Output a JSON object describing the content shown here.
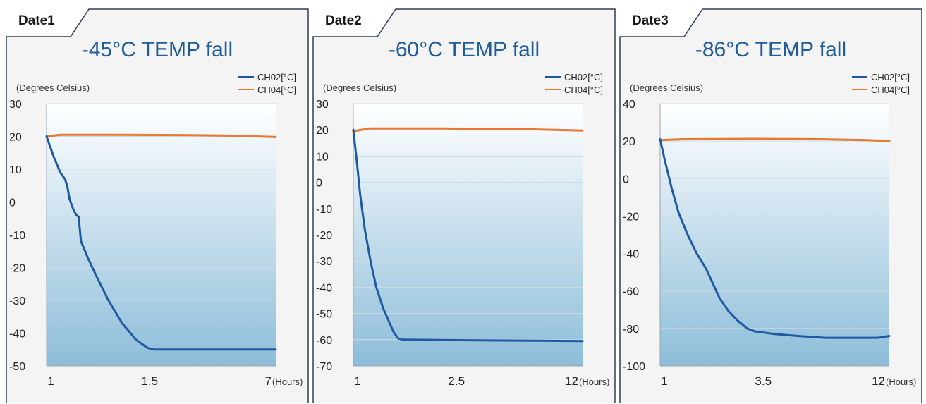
{
  "colors": {
    "ch02": "#1e5aa3",
    "ch04": "#e8792f",
    "title": "#1e5c9b",
    "frame": "#2f3f55",
    "panel_bg": "#f4f4f4"
  },
  "chart_data": [
    {
      "type": "line",
      "tab": "Date1",
      "title": "-45°C TEMP fall",
      "ylabel": "(Degrees Celsius)",
      "xunit": "(Hours)",
      "yticks": [
        30,
        20,
        10,
        0,
        -10,
        -20,
        -30,
        -40,
        -50
      ],
      "ylim": [
        -50,
        30
      ],
      "xticks": [
        "1",
        "1.5",
        "7"
      ],
      "series": [
        {
          "name": "CH02[°C]",
          "points": [
            [
              0,
              20
            ],
            [
              0.03,
              14
            ],
            [
              0.06,
              9
            ],
            [
              0.08,
              7
            ],
            [
              0.09,
              5
            ],
            [
              0.1,
              1
            ],
            [
              0.115,
              -2
            ],
            [
              0.13,
              -4
            ],
            [
              0.14,
              -4.5
            ],
            [
              0.15,
              -12
            ],
            [
              0.18,
              -17
            ],
            [
              0.22,
              -23
            ],
            [
              0.27,
              -30
            ],
            [
              0.33,
              -37
            ],
            [
              0.39,
              -42
            ],
            [
              0.44,
              -44.5
            ],
            [
              0.47,
              -45
            ],
            [
              1,
              -45
            ]
          ]
        },
        {
          "name": "CH04[°C]",
          "points": [
            [
              0,
              20
            ],
            [
              0.06,
              20.5
            ],
            [
              0.3,
              20.5
            ],
            [
              0.6,
              20.4
            ],
            [
              0.85,
              20.2
            ],
            [
              1,
              19.8
            ]
          ]
        }
      ]
    },
    {
      "type": "line",
      "tab": "Date2",
      "title": "-60°C TEMP fall",
      "ylabel": "(Degrees Celsius)",
      "xunit": "(Hours)",
      "yticks": [
        30,
        20,
        10,
        0,
        -10,
        -20,
        -30,
        -40,
        -50,
        -60,
        -70
      ],
      "ylim": [
        -70,
        30
      ],
      "xticks": [
        "1",
        "2.5",
        "12"
      ],
      "series": [
        {
          "name": "CH02[°C]",
          "points": [
            [
              0,
              20
            ],
            [
              0.015,
              8
            ],
            [
              0.03,
              -5
            ],
            [
              0.05,
              -18
            ],
            [
              0.075,
              -30
            ],
            [
              0.1,
              -40
            ],
            [
              0.13,
              -48
            ],
            [
              0.155,
              -53
            ],
            [
              0.175,
              -57
            ],
            [
              0.195,
              -59.5
            ],
            [
              0.215,
              -60
            ],
            [
              0.6,
              -60.3
            ],
            [
              1,
              -60.5
            ]
          ]
        },
        {
          "name": "CH04[°C]",
          "points": [
            [
              0,
              19.5
            ],
            [
              0.07,
              20.5
            ],
            [
              0.4,
              20.5
            ],
            [
              0.75,
              20.3
            ],
            [
              1,
              19.7
            ]
          ]
        }
      ]
    },
    {
      "type": "line",
      "tab": "Date3",
      "title": "-86°C TEMP fall",
      "ylabel": "(Degrees Celsius)",
      "xunit": "(Hours)",
      "yticks": [
        40,
        20,
        0,
        -20,
        -40,
        -60,
        -80,
        -100
      ],
      "ylim": [
        -100,
        40
      ],
      "xticks": [
        "1",
        "3.5",
        "12"
      ],
      "series": [
        {
          "name": "CH02[°C]",
          "points": [
            [
              0,
              21
            ],
            [
              0.02,
              10
            ],
            [
              0.05,
              -5
            ],
            [
              0.08,
              -18
            ],
            [
              0.12,
              -30
            ],
            [
              0.16,
              -40
            ],
            [
              0.2,
              -48
            ],
            [
              0.23,
              -56
            ],
            [
              0.26,
              -64
            ],
            [
              0.3,
              -71
            ],
            [
              0.34,
              -76
            ],
            [
              0.38,
              -80
            ],
            [
              0.41,
              -81.5
            ],
            [
              0.5,
              -83
            ],
            [
              0.6,
              -84
            ],
            [
              0.72,
              -85
            ],
            [
              0.85,
              -85
            ],
            [
              0.95,
              -85
            ],
            [
              1,
              -84
            ]
          ]
        },
        {
          "name": "CH04[°C]",
          "points": [
            [
              0,
              20.5
            ],
            [
              0.1,
              21
            ],
            [
              0.4,
              21.2
            ],
            [
              0.7,
              21
            ],
            [
              0.9,
              20.5
            ],
            [
              1,
              20
            ]
          ]
        }
      ]
    }
  ]
}
